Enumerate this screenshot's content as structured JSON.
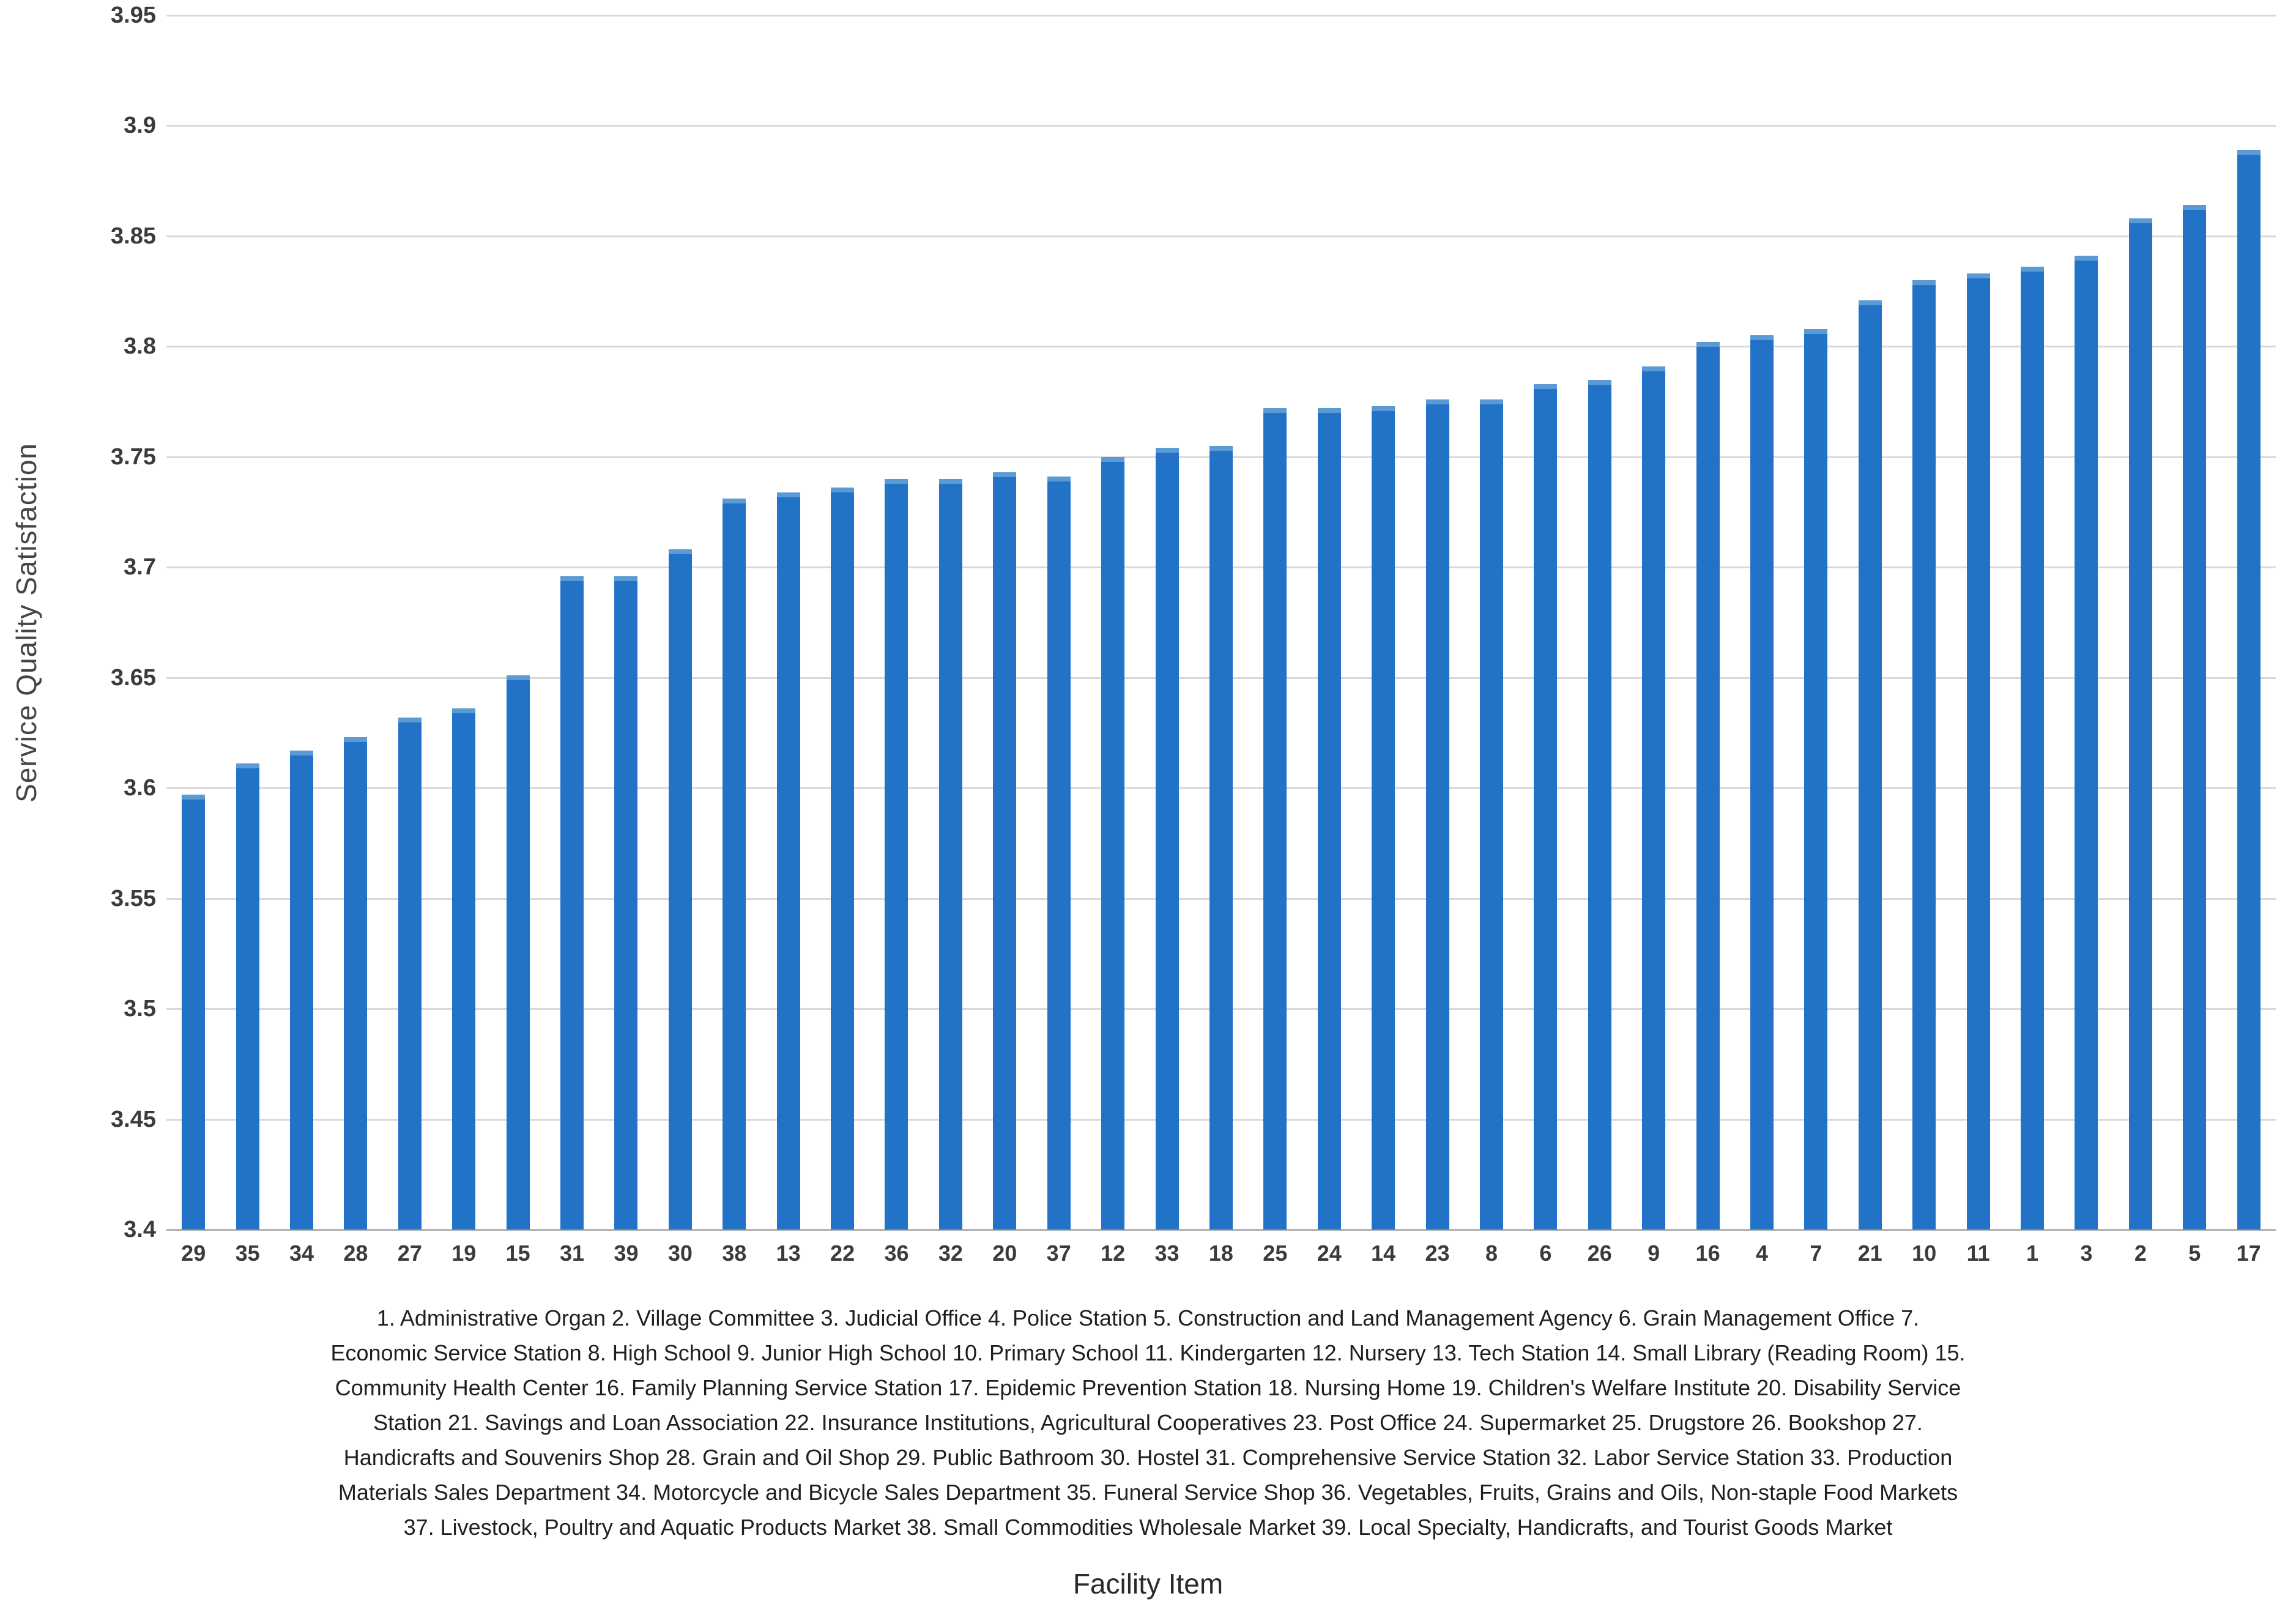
{
  "chart_data": {
    "type": "bar",
    "title": "",
    "xlabel": "Facility Item",
    "ylabel": "Service Quality Satisfaction",
    "ylim": [
      3.4,
      3.95
    ],
    "grid": true,
    "legend": "none",
    "bar_color": "#2272c8",
    "bar_cap_color": "#5b9bd5",
    "gridline_color": "#d9d9d9",
    "ytick_labels": [
      "3.4",
      "3.45",
      "3.5",
      "3.55",
      "3.6",
      "3.65",
      "3.7",
      "3.75",
      "3.8",
      "3.85",
      "3.9",
      "3.95"
    ],
    "yticks": [
      3.4,
      3.45,
      3.5,
      3.55,
      3.6,
      3.65,
      3.7,
      3.75,
      3.8,
      3.85,
      3.9,
      3.95
    ],
    "categories": [
      "29",
      "35",
      "34",
      "28",
      "27",
      "19",
      "15",
      "31",
      "39",
      "30",
      "38",
      "13",
      "22",
      "36",
      "32",
      "20",
      "37",
      "12",
      "33",
      "18",
      "25",
      "24",
      "14",
      "23",
      "8",
      "6",
      "26",
      "9",
      "16",
      "4",
      "7",
      "21",
      "10",
      "11",
      "1",
      "3",
      "2",
      "5",
      "17"
    ],
    "values": [
      3.597,
      3.611,
      3.617,
      3.623,
      3.632,
      3.636,
      3.651,
      3.696,
      3.696,
      3.708,
      3.731,
      3.734,
      3.736,
      3.74,
      3.74,
      3.743,
      3.741,
      3.75,
      3.754,
      3.755,
      3.772,
      3.772,
      3.773,
      3.776,
      3.776,
      3.783,
      3.785,
      3.791,
      3.802,
      3.805,
      3.808,
      3.821,
      3.83,
      3.833,
      3.836,
      3.841,
      3.858,
      3.864,
      3.889
    ]
  },
  "caption": {
    "lines": [
      "1. Administrative Organ 2. Village Committee 3. Judicial Office 4. Police Station 5. Construction and Land Management Agency 6. Grain Management Office 7.",
      "Economic Service Station 8. High School 9. Junior High School 10. Primary School 11. Kindergarten 12. Nursery 13. Tech Station 14. Small Library (Reading Room) 15.",
      "Community Health Center 16. Family Planning Service Station 17. Epidemic Prevention Station 18. Nursing Home 19. Children's Welfare Institute 20. Disability Service",
      "Station 21. Savings and Loan Association 22. Insurance Institutions, Agricultural Cooperatives 23. Post Office 24. Supermarket 25. Drugstore 26. Bookshop 27.",
      "Handicrafts and Souvenirs Shop 28. Grain and Oil Shop 29. Public Bathroom 30. Hostel 31. Comprehensive Service Station 32. Labor Service Station 33. Production",
      "Materials Sales Department 34. Motorcycle and Bicycle Sales Department 35. Funeral Service Shop 36. Vegetables, Fruits, Grains and Oils, Non-staple Food Markets",
      "37. Livestock, Poultry and Aquatic Products Market 38. Small Commodities Wholesale Market 39. Local Specialty, Handicrafts, and Tourist Goods Market"
    ]
  }
}
